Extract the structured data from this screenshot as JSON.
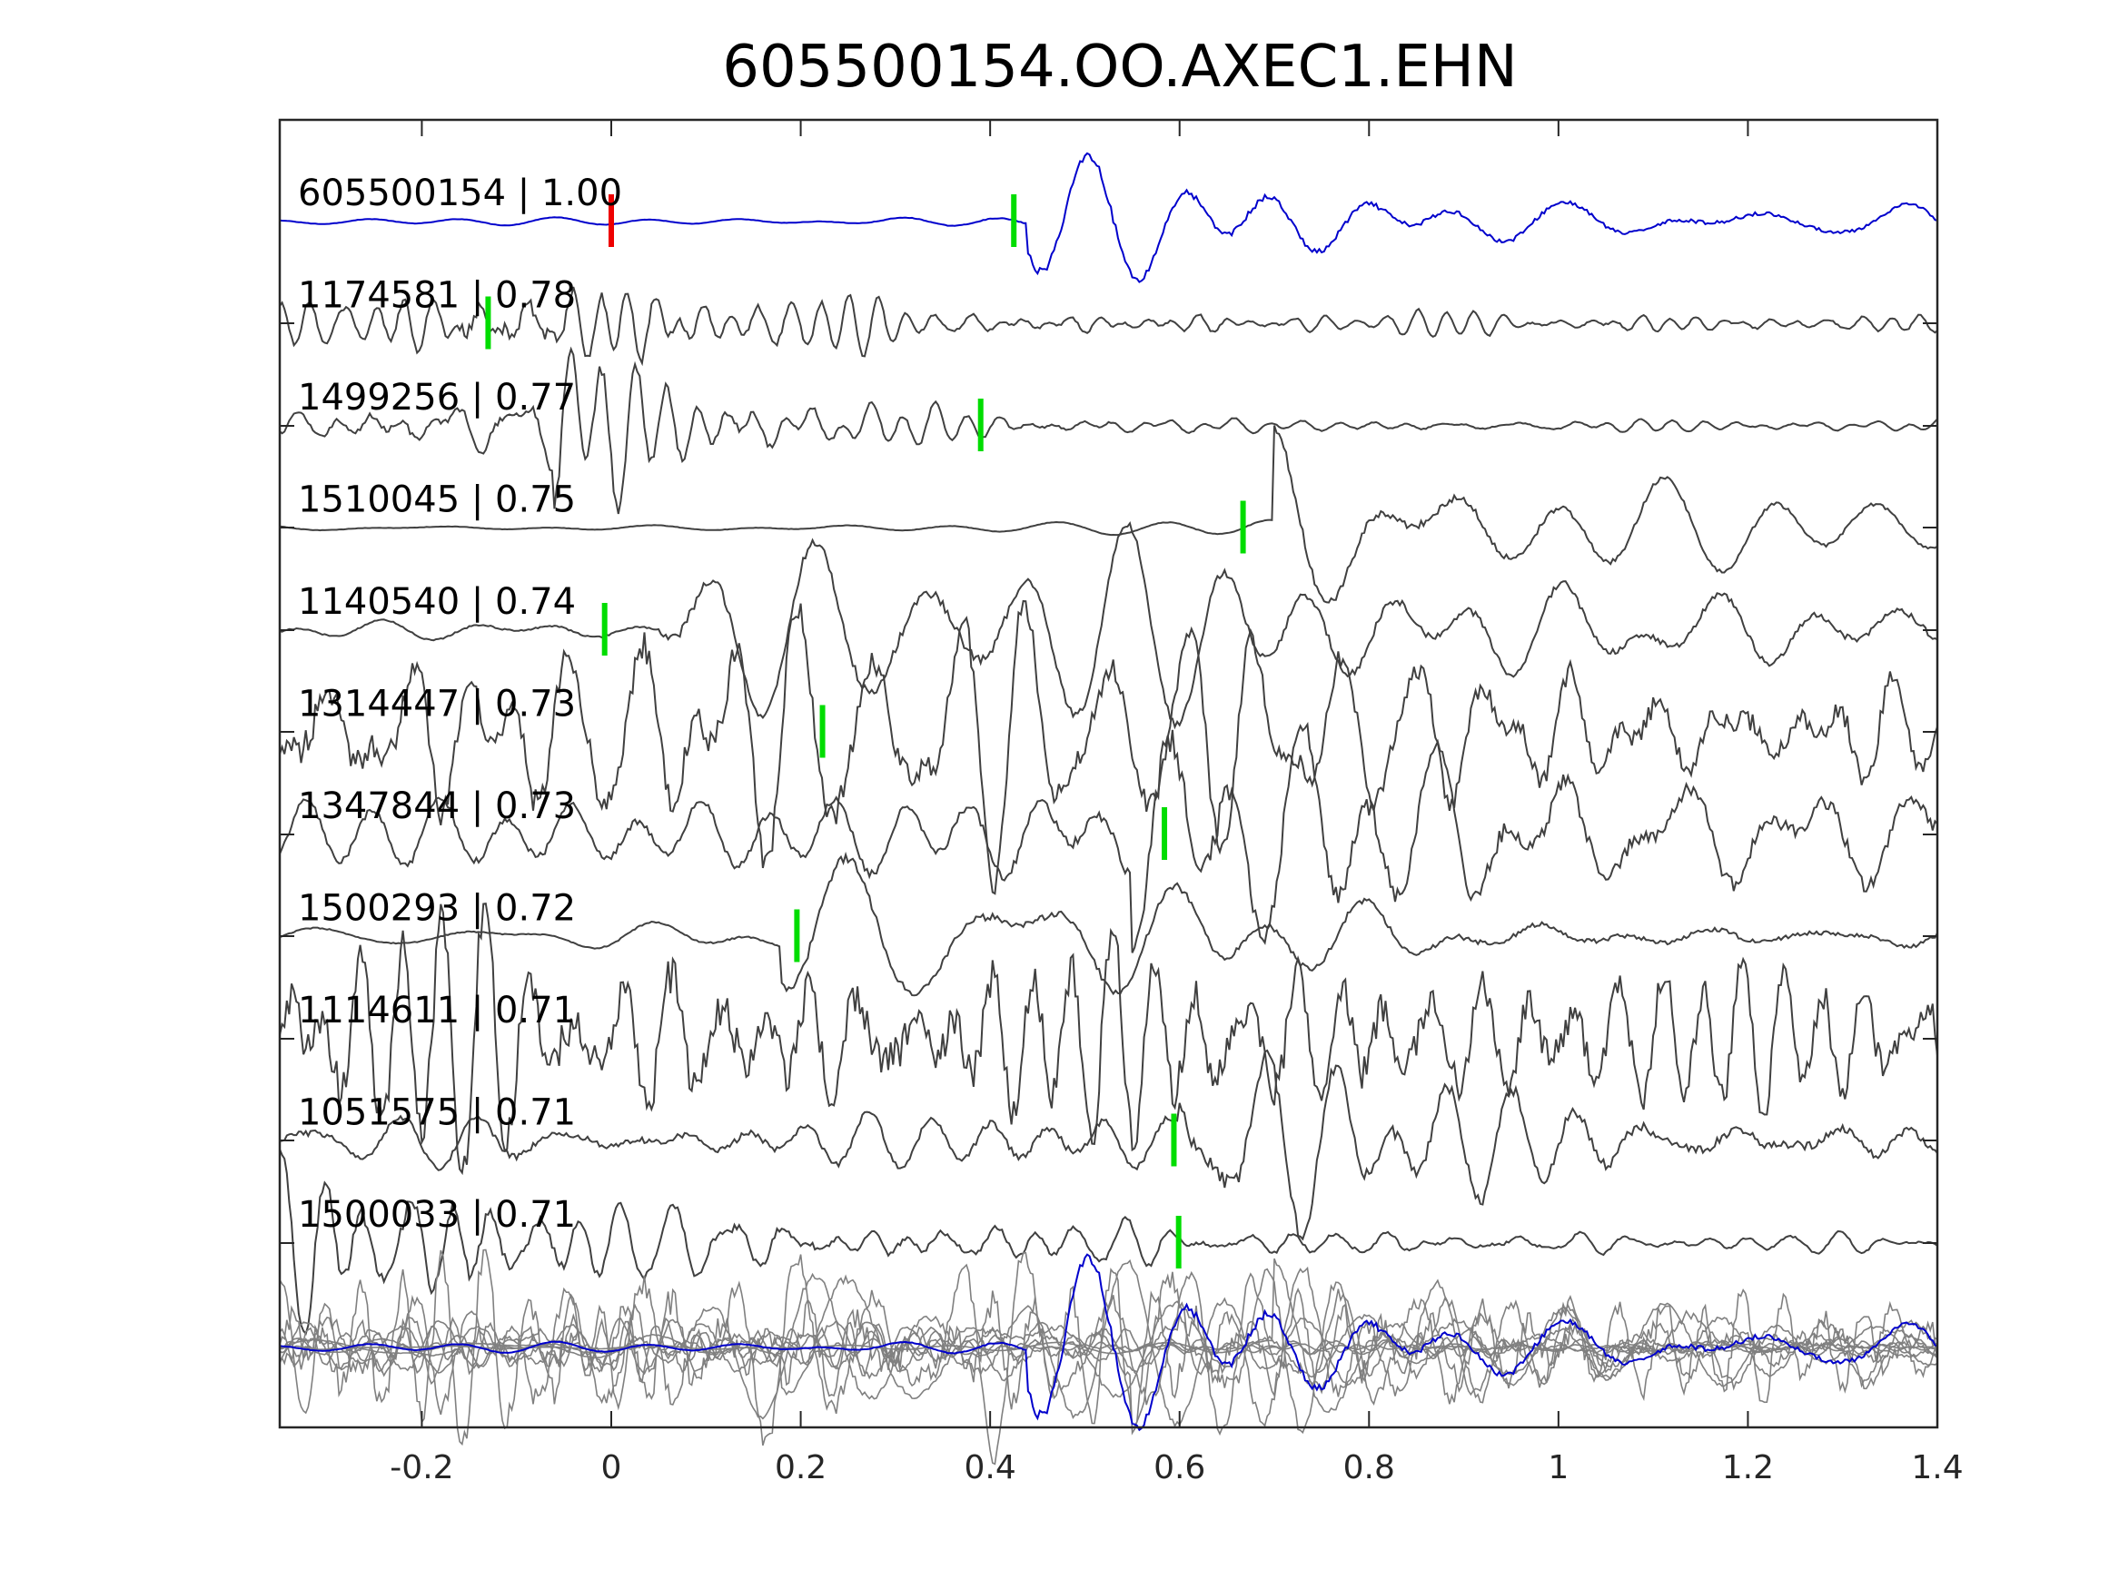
{
  "chart_data": {
    "type": "line",
    "title": "605500154.OO.AXEC1.EHN",
    "xlabel": "",
    "ylabel": "",
    "xlim": [
      -0.35,
      1.4
    ],
    "xticks": [
      -0.2,
      0,
      0.2,
      0.4,
      0.6,
      0.8,
      1,
      1.2,
      1.4
    ],
    "xtick_labels": [
      "-0.2",
      "0",
      "0.2",
      "0.4",
      "0.6",
      "0.8",
      "1",
      "1.2",
      "1.4"
    ],
    "grid": false,
    "colors": {
      "reference": "#0000cc",
      "trace": "#404040",
      "stack": "#808080",
      "pick": "#00dd00",
      "origin_pick": "#ee0000"
    },
    "series": [
      {
        "label": "605500154 | 1.00",
        "pick": 0.425,
        "origin_pick": 0.0,
        "reference": true
      },
      {
        "label": "1174581 | 0.78",
        "pick": -0.13
      },
      {
        "label": "1499256 | 0.77",
        "pick": 0.39
      },
      {
        "label": "1510045 | 0.75",
        "pick": 0.667
      },
      {
        "label": "1140540 | 0.74",
        "pick": -0.007
      },
      {
        "label": "1314447 | 0.73",
        "pick": 0.223
      },
      {
        "label": "1347844 | 0.73",
        "pick": 0.584
      },
      {
        "label": "1500293 | 0.72",
        "pick": 0.196
      },
      {
        "label": "1114611 | 0.71",
        "pick": null
      },
      {
        "label": "1051575 | 0.71",
        "pick": 0.594
      },
      {
        "label": "1500033 | 0.71",
        "pick": 0.599
      }
    ]
  }
}
